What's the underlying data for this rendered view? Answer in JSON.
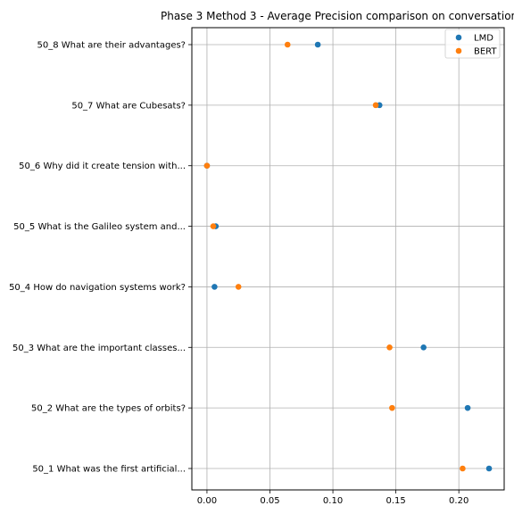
{
  "chart_data": {
    "type": "scatter",
    "title": "Phase 3 Method 3 - Average Precision comparison on conversation",
    "xlabel": "",
    "ylabel": "",
    "xlim": [
      -0.012,
      0.236
    ],
    "x_ticks": [
      0.0,
      0.05,
      0.1,
      0.15,
      0.2
    ],
    "x_tick_labels": [
      "0.00",
      "0.05",
      "0.10",
      "0.15",
      "0.20"
    ],
    "categories": [
      "50_1 What was the first artificial...",
      "50_2 What are the types of orbits?",
      "50_3 What are the important classes...",
      "50_4 How do navigation systems work?",
      "50_5 What is the Galileo system and...",
      "50_6 Why did it create tension with...",
      "50_7 What are Cubesats?",
      "50_8 What are their advantages?"
    ],
    "series": [
      {
        "name": "LMD",
        "color": "#1f77b4",
        "values": [
          0.224,
          0.207,
          0.172,
          0.006,
          0.007,
          0.0,
          0.137,
          0.088
        ]
      },
      {
        "name": "BERT",
        "color": "#ff7f0e",
        "values": [
          0.203,
          0.147,
          0.145,
          0.025,
          0.005,
          0.0,
          0.134,
          0.064
        ]
      }
    ],
    "grid": true,
    "legend_position": "top-right"
  }
}
